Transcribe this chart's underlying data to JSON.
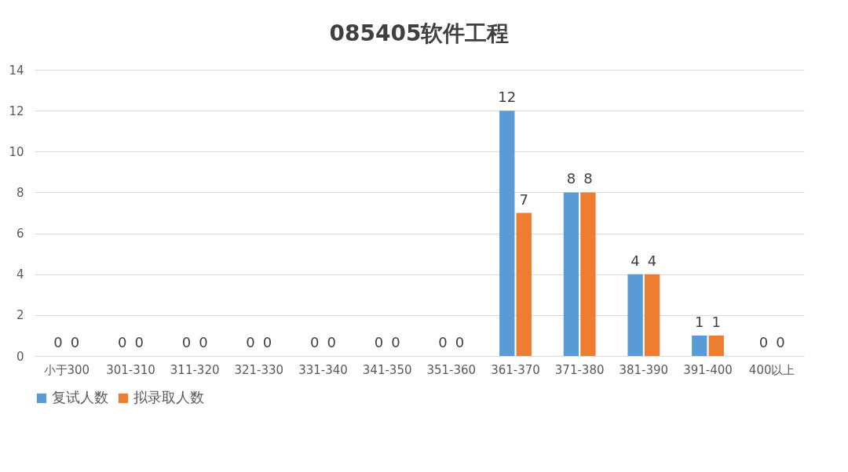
{
  "chart_data": {
    "type": "bar",
    "title": "085405软件工程",
    "categories": [
      "小于300",
      "301-310",
      "311-320",
      "321-330",
      "331-340",
      "341-350",
      "351-360",
      "361-370",
      "371-380",
      "381-390",
      "391-400",
      "400以上"
    ],
    "series": [
      {
        "name": "复试人数",
        "color": "#5b9bd5",
        "values": [
          0,
          0,
          0,
          0,
          0,
          0,
          0,
          12,
          8,
          4,
          1,
          0
        ]
      },
      {
        "name": "拟录取人数",
        "color": "#ed7d31",
        "values": [
          0,
          0,
          0,
          0,
          0,
          0,
          0,
          7,
          8,
          4,
          1,
          0
        ]
      }
    ],
    "ylim": [
      0,
      14
    ],
    "yticks": [
      0,
      2,
      4,
      6,
      8,
      10,
      12,
      14
    ],
    "grid": "y",
    "legend": "bottom",
    "data_labels": true
  }
}
